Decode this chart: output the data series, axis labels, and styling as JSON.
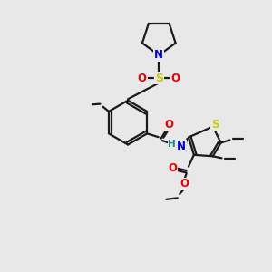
{
  "bg_color": "#e8e8e8",
  "bond_color": "#1a1a1a",
  "atom_colors": {
    "N": "#0000ee",
    "O": "#ee0000",
    "S": "#cccc00",
    "H": "#1a8a8a"
  },
  "figsize": [
    3.0,
    3.0
  ],
  "dpi": 100
}
